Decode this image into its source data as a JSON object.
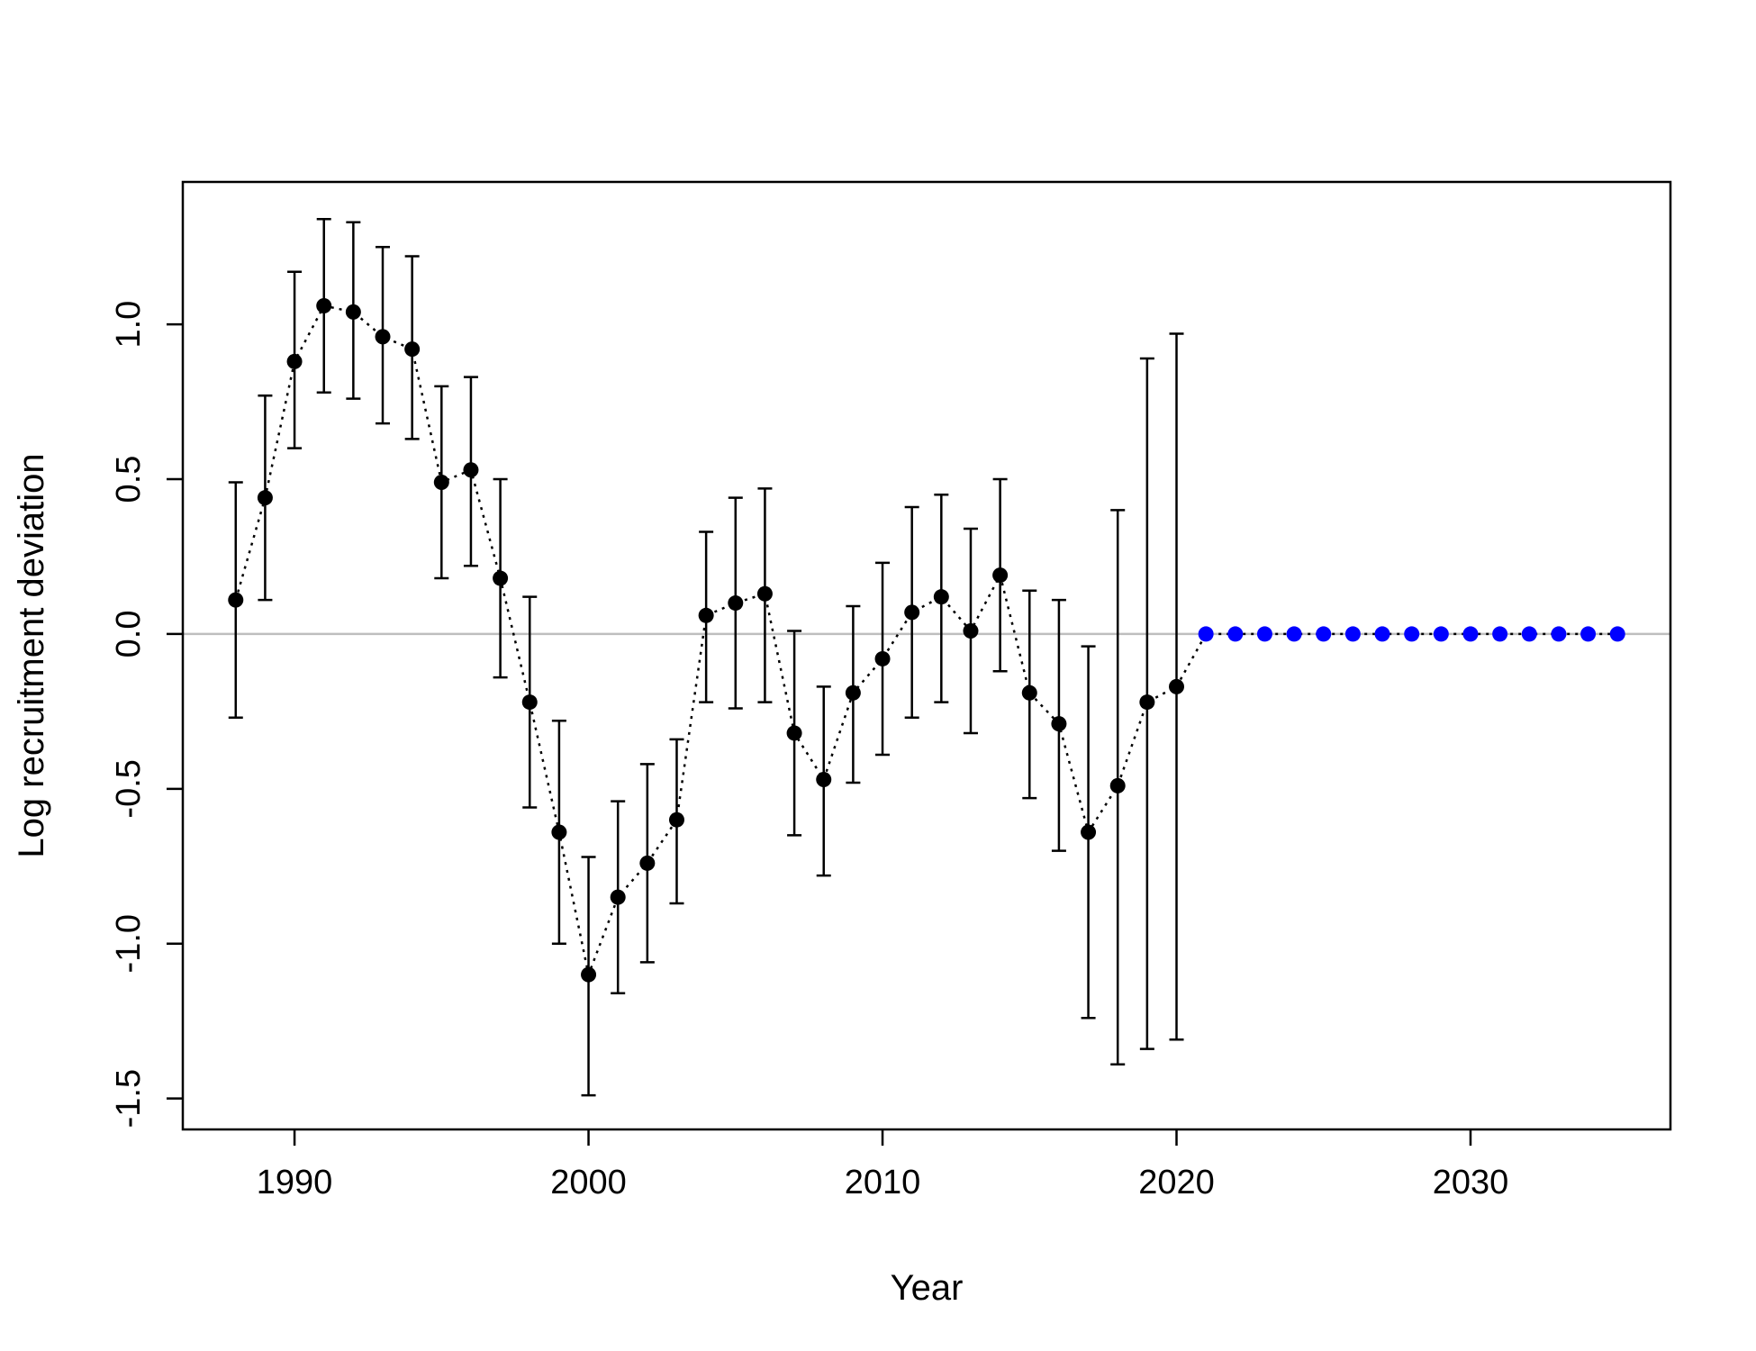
{
  "chart_data": {
    "type": "scatter",
    "title": "",
    "xlabel": "Year",
    "ylabel": "Log recruitment deviation",
    "xlim": [
      1986.2,
      2036.8
    ],
    "ylim": [
      -1.6,
      1.46
    ],
    "x_ticks": [
      1990,
      2000,
      2010,
      2020,
      2030
    ],
    "y_ticks": [
      -1.5,
      -1.0,
      -0.5,
      0.0,
      0.5,
      1.0
    ],
    "x_tick_labels": [
      "1990",
      "2000",
      "2010",
      "2020",
      "2030"
    ],
    "y_tick_labels": [
      "-1.5",
      "-1.0",
      "-0.5",
      "0.0",
      "0.5",
      "1.0"
    ],
    "reference_line": 0,
    "reference_color": "#bebebe",
    "grid": false,
    "legend": false,
    "series": [
      {
        "color": "#000000",
        "line_style": "dotted",
        "points": [
          {
            "x": 1988,
            "y": 0.11,
            "lo": -0.27,
            "hi": 0.49
          },
          {
            "x": 1989,
            "y": 0.44,
            "lo": 0.11,
            "hi": 0.77
          },
          {
            "x": 1990,
            "y": 0.88,
            "lo": 0.6,
            "hi": 1.17
          },
          {
            "x": 1991,
            "y": 1.06,
            "lo": 0.78,
            "hi": 1.34
          },
          {
            "x": 1992,
            "y": 1.04,
            "lo": 0.76,
            "hi": 1.33
          },
          {
            "x": 1993,
            "y": 0.96,
            "lo": 0.68,
            "hi": 1.25
          },
          {
            "x": 1994,
            "y": 0.92,
            "lo": 0.63,
            "hi": 1.22
          },
          {
            "x": 1995,
            "y": 0.49,
            "lo": 0.18,
            "hi": 0.8
          },
          {
            "x": 1996,
            "y": 0.53,
            "lo": 0.22,
            "hi": 0.83
          },
          {
            "x": 1997,
            "y": 0.18,
            "lo": -0.14,
            "hi": 0.5
          },
          {
            "x": 1998,
            "y": -0.22,
            "lo": -0.56,
            "hi": 0.12
          },
          {
            "x": 1999,
            "y": -0.64,
            "lo": -1.0,
            "hi": -0.28
          },
          {
            "x": 2000,
            "y": -1.1,
            "lo": -1.49,
            "hi": -0.72
          },
          {
            "x": 2001,
            "y": -0.85,
            "lo": -1.16,
            "hi": -0.54
          },
          {
            "x": 2002,
            "y": -0.74,
            "lo": -1.06,
            "hi": -0.42
          },
          {
            "x": 2003,
            "y": -0.6,
            "lo": -0.87,
            "hi": -0.34
          },
          {
            "x": 2004,
            "y": 0.06,
            "lo": -0.22,
            "hi": 0.33
          },
          {
            "x": 2005,
            "y": 0.1,
            "lo": -0.24,
            "hi": 0.44
          },
          {
            "x": 2006,
            "y": 0.13,
            "lo": -0.22,
            "hi": 0.47
          },
          {
            "x": 2007,
            "y": -0.32,
            "lo": -0.65,
            "hi": 0.01
          },
          {
            "x": 2008,
            "y": -0.47,
            "lo": -0.78,
            "hi": -0.17
          },
          {
            "x": 2009,
            "y": -0.19,
            "lo": -0.48,
            "hi": 0.09
          },
          {
            "x": 2010,
            "y": -0.08,
            "lo": -0.39,
            "hi": 0.23
          },
          {
            "x": 2011,
            "y": 0.07,
            "lo": -0.27,
            "hi": 0.41
          },
          {
            "x": 2012,
            "y": 0.12,
            "lo": -0.22,
            "hi": 0.45
          },
          {
            "x": 2013,
            "y": 0.01,
            "lo": -0.32,
            "hi": 0.34
          },
          {
            "x": 2014,
            "y": 0.19,
            "lo": -0.12,
            "hi": 0.5
          },
          {
            "x": 2015,
            "y": -0.19,
            "lo": -0.53,
            "hi": 0.14
          },
          {
            "x": 2016,
            "y": -0.29,
            "lo": -0.7,
            "hi": 0.11
          },
          {
            "x": 2017,
            "y": -0.64,
            "lo": -1.24,
            "hi": -0.04
          },
          {
            "x": 2018,
            "y": -0.49,
            "lo": -1.39,
            "hi": 0.4
          },
          {
            "x": 2019,
            "y": -0.22,
            "lo": -1.34,
            "hi": 0.89
          },
          {
            "x": 2020,
            "y": -0.17,
            "lo": -1.31,
            "hi": 0.97
          }
        ]
      },
      {
        "color": "#0000ff",
        "line_style": "dotted",
        "points": [
          {
            "x": 2021,
            "y": 0.0
          },
          {
            "x": 2022,
            "y": 0.0
          },
          {
            "x": 2023,
            "y": 0.0
          },
          {
            "x": 2024,
            "y": 0.0
          },
          {
            "x": 2025,
            "y": 0.0
          },
          {
            "x": 2026,
            "y": 0.0
          },
          {
            "x": 2027,
            "y": 0.0
          },
          {
            "x": 2028,
            "y": 0.0
          },
          {
            "x": 2029,
            "y": 0.0
          },
          {
            "x": 2030,
            "y": 0.0
          },
          {
            "x": 2031,
            "y": 0.0
          },
          {
            "x": 2032,
            "y": 0.0
          },
          {
            "x": 2033,
            "y": 0.0
          },
          {
            "x": 2034,
            "y": 0.0
          },
          {
            "x": 2035,
            "y": 0.0
          }
        ]
      }
    ]
  }
}
